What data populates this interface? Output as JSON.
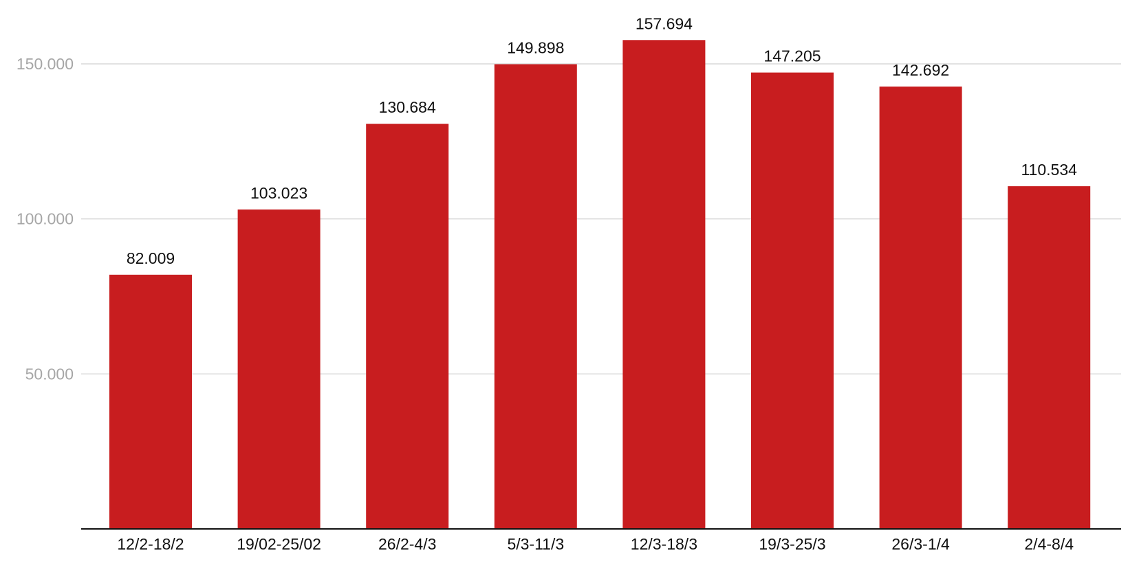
{
  "chart_data": {
    "type": "bar",
    "categories": [
      "12/2-18/2",
      "19/02-25/02",
      "26/2-4/3",
      "5/3-11/3",
      "12/3-18/3",
      "19/3-25/3",
      "26/3-1/4",
      "2/4-8/4"
    ],
    "values": [
      82009,
      103023,
      130684,
      149898,
      157694,
      147205,
      142692,
      110534
    ],
    "value_labels": [
      "82.009",
      "103.023",
      "130.684",
      "149.898",
      "157.694",
      "147.205",
      "142.692",
      "110.534"
    ],
    "y_ticks": [
      50000,
      100000,
      150000
    ],
    "y_tick_labels": [
      "50.000",
      "100.000",
      "150.000"
    ],
    "ylim": [
      0,
      170000
    ],
    "title": "",
    "xlabel": "",
    "ylabel": "",
    "grid": true,
    "legend": "none",
    "bar_color": "#c81d1f"
  }
}
